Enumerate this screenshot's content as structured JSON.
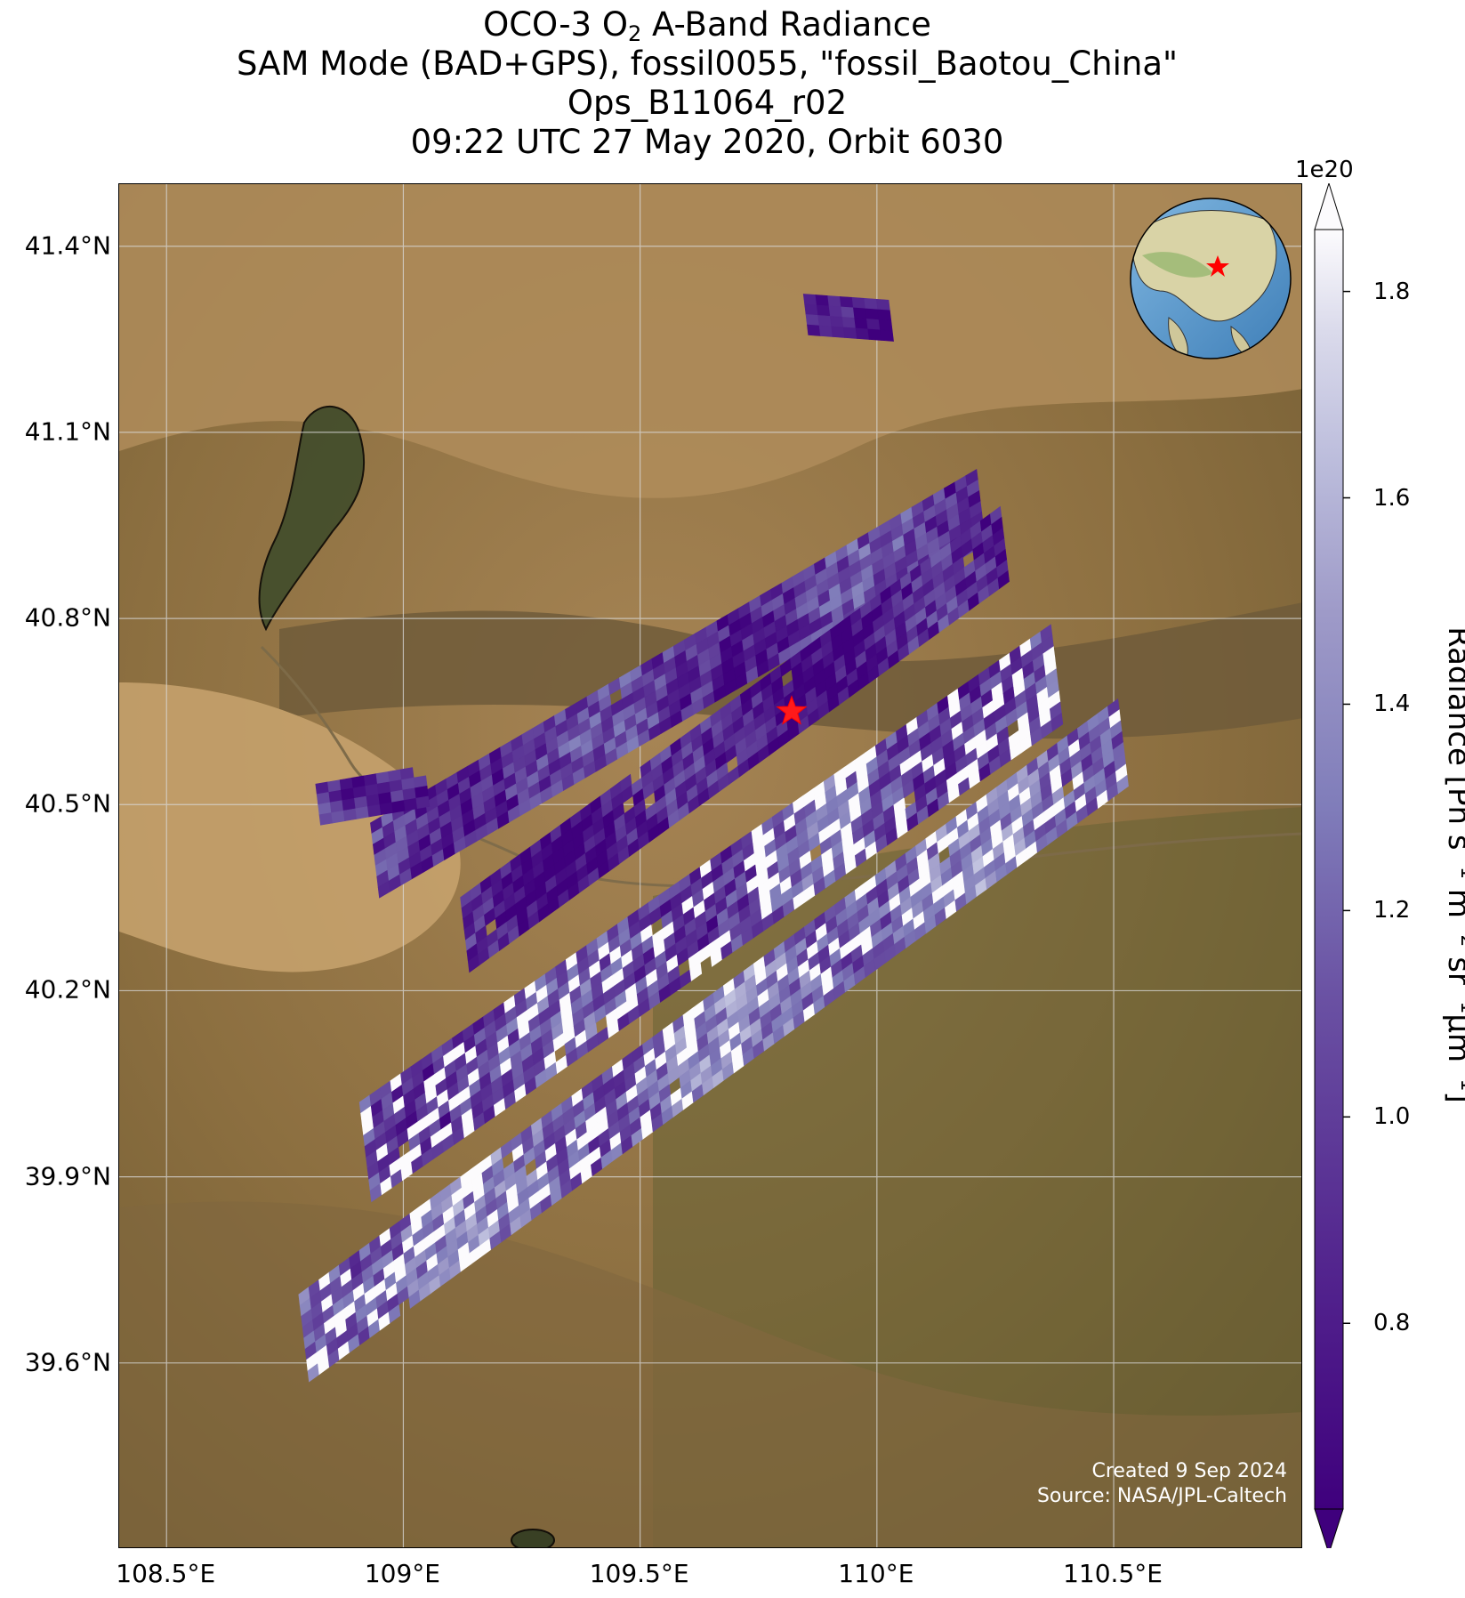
{
  "title": {
    "line1_pre": "OCO-3 O",
    "line1_sub": "2",
    "line1_post": " A-Band Radiance",
    "line2": "SAM Mode (BAD+GPS), fossil0055, \"fossil_Baotou_China\"",
    "line3": "Ops_B11064_r02",
    "line4": "09:22 UTC 27 May 2020, Orbit 6030"
  },
  "map": {
    "lat_ticks": [
      "41.4°N",
      "41.1°N",
      "40.8°N",
      "40.5°N",
      "40.2°N",
      "39.9°N",
      "39.6°N"
    ],
    "lon_ticks": [
      "108.5°E",
      "109°E",
      "109.5°E",
      "110°E",
      "110.5°E"
    ],
    "basemap": "satellite imagery (semi-arid terrain, Yellow River, mountains)",
    "target_marker": {
      "symbol": "star",
      "color": "#ff0000",
      "lat": 40.65,
      "lon": 109.82
    },
    "inset_globe": {
      "center_region": "East Asia",
      "marker": "red star"
    }
  },
  "colorbar": {
    "exponent": "1e20",
    "ticks": [
      "1.8",
      "1.6",
      "1.4",
      "1.2",
      "1.0",
      "0.8"
    ],
    "label_pre": "Radiance [Ph s",
    "label_sup1": "−1",
    "label_mid1": " m",
    "label_sup2": "−2",
    "label_mid2": " sr",
    "label_sup3": "−1",
    "label_mid3": "μm",
    "label_sup4": "−1",
    "label_post": "]",
    "colormap": "Purples_r",
    "range": [
      0.62,
      1.86
    ],
    "extend": "both"
  },
  "credit": {
    "line1": "Created 9 Sep 2024",
    "line2": "Source: NASA/JPL-Caltech"
  },
  "chart_data": {
    "type": "heatmap",
    "title": "OCO-3 O2 A-Band Radiance",
    "xlabel": "",
    "ylabel": "",
    "xlim": [
      108.4,
      110.9
    ],
    "ylim": [
      39.3,
      41.5
    ],
    "color_scale": {
      "min": 0.62,
      "max": 1.86,
      "units": "1e20 Ph s-1 m-2 sr-1 um-1"
    },
    "swaths": [
      {
        "name": "swath-a",
        "from": [
          108.94,
          40.41
        ],
        "to": [
          110.22,
          40.98
        ],
        "width_deg": 0.07,
        "mean_value": 0.95
      },
      {
        "name": "swath-b",
        "from": [
          109.13,
          40.29
        ],
        "to": [
          110.27,
          40.92
        ],
        "width_deg": 0.07,
        "mean_value": 0.78
      },
      {
        "name": "swath-c",
        "from": [
          108.92,
          39.94
        ],
        "to": [
          110.38,
          40.71
        ],
        "width_deg": 0.11,
        "mean_value": 1.05
      },
      {
        "name": "swath-d",
        "from": [
          108.79,
          39.64
        ],
        "to": [
          110.52,
          40.6
        ],
        "width_deg": 0.09,
        "mean_value": 1.25
      },
      {
        "name": "swath-e",
        "from": [
          109.85,
          41.29
        ],
        "to": [
          110.03,
          41.28
        ],
        "width_deg": 0.015,
        "mean_value": 0.7
      },
      {
        "name": "swath-f",
        "from": [
          108.82,
          40.5
        ],
        "to": [
          109.05,
          40.53
        ],
        "width_deg": 0.015,
        "mean_value": 0.9
      }
    ]
  }
}
